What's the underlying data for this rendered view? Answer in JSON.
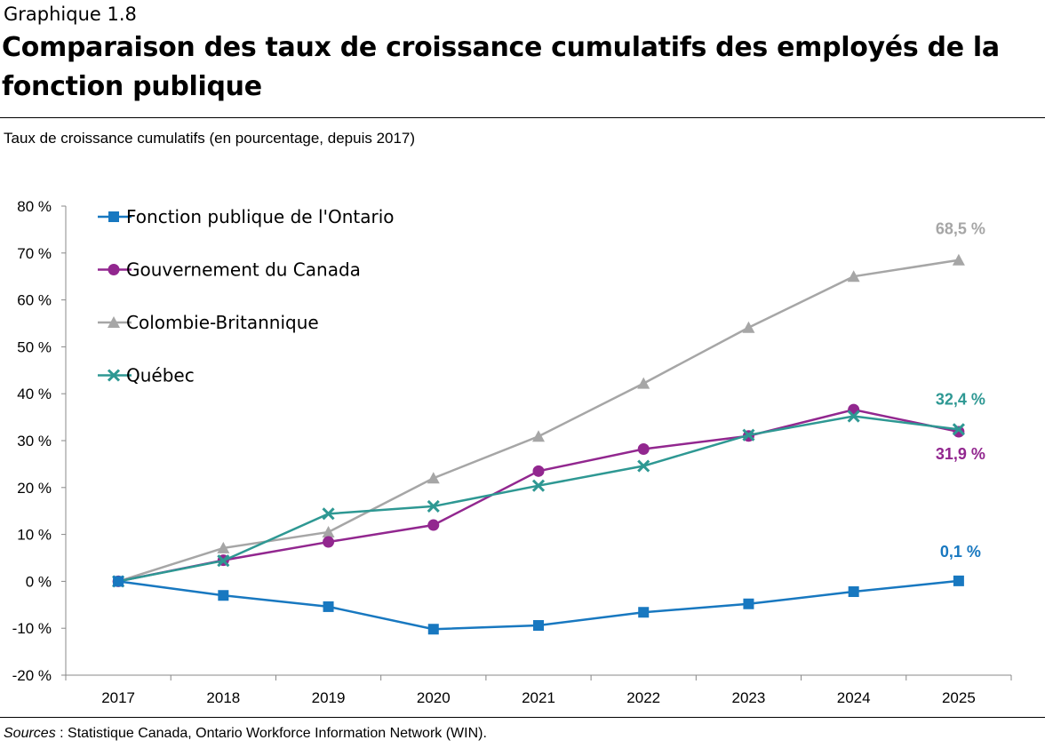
{
  "header": {
    "supertitle": "Graphique 1.8",
    "title": "Comparaison des taux de croissance cumulatifs des employés de la fonction publique",
    "subtitle": "Taux de croissance cumulatifs (en pourcentage, depuis 2017)"
  },
  "footer": {
    "sources_label": "Sources",
    "sources_text": " : Statistique Canada, Ontario Workforce Information Network (WIN)."
  },
  "chart_data": {
    "type": "line",
    "title": "Comparaison des taux de croissance cumulatifs des employés de la fonction publique",
    "ylabel": "Taux de croissance cumulatifs (en pourcentage, depuis 2017)",
    "xlabel": "",
    "categories": [
      "2017",
      "2018",
      "2019",
      "2020",
      "2021",
      "2022",
      "2023",
      "2024",
      "2025"
    ],
    "ylim": [
      -20,
      80
    ],
    "yticks": [
      -20,
      -10,
      0,
      10,
      20,
      30,
      40,
      50,
      60,
      70,
      80
    ],
    "ytick_labels": [
      "-20 %",
      "-10 %",
      "0 %",
      "10 %",
      "20 %",
      "30 %",
      "40 %",
      "50 %",
      "60 %",
      "70 %",
      "80 %"
    ],
    "grid": false,
    "legend_position": "top-left",
    "series": [
      {
        "name": "Fonction publique de l'Ontario",
        "color": "#1878c0",
        "marker": "square",
        "values": [
          0,
          -3.0,
          -5.4,
          -10.2,
          -9.4,
          -6.6,
          -4.8,
          -2.2,
          0.1
        ],
        "end_label": "0,1 %"
      },
      {
        "name": "Gouvernement du Canada",
        "color": "#92278f",
        "marker": "circle",
        "values": [
          0,
          4.5,
          8.4,
          12.0,
          23.5,
          28.2,
          31.0,
          36.6,
          31.9
        ],
        "end_label": "31,9 %"
      },
      {
        "name": "Colombie-Britannique",
        "color": "#a6a6a6",
        "marker": "triangle",
        "values": [
          0,
          7.1,
          10.5,
          22.0,
          30.9,
          42.2,
          54.1,
          65.0,
          68.5
        ],
        "end_label": "68,5 %"
      },
      {
        "name": "Québec",
        "color": "#2e9893",
        "marker": "x",
        "values": [
          0,
          4.4,
          14.4,
          16.0,
          20.4,
          24.6,
          31.2,
          35.2,
          32.4
        ],
        "end_label": "32,4 %"
      }
    ]
  }
}
